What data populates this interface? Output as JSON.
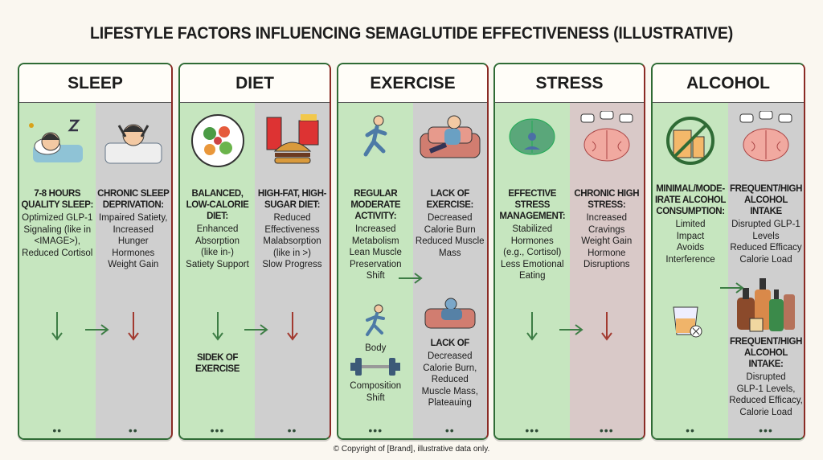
{
  "title": "LIFESTYLE FACTORS INFLUENCING SEMAGLUTIDE EFFECTIVENESS (ILLUSTRATIVE)",
  "footer": "© Copyright of [Brand], illustrative data only.",
  "colors": {
    "positive": "#c6e6bf",
    "negative": "#cfcfcf",
    "negative_stress": "#d9c9c8",
    "green_arrow": "#3d7d45",
    "red_arrow": "#a23a30"
  },
  "panels": [
    {
      "title": "SLEEP",
      "left": {
        "icon": "sleeping-person-icon",
        "heading": "7-8 HOURS QUALITY SLEEP:",
        "body": [
          "Optimized GLP-1",
          "Signaling (like in",
          "<IMAGE>),",
          "Reduced Cortisol"
        ],
        "dots": "••"
      },
      "right": {
        "icon": "sleepless-person-icon",
        "heading": "CHRONIC SLEEP DEPRIVATION:",
        "body": [
          "Impaired Satiety,",
          "Increased",
          "Hunger",
          "Hormones",
          "Weight Gain"
        ],
        "dots": "••"
      }
    },
    {
      "title": "DIET",
      "left": {
        "icon": "healthy-plate-icon",
        "heading": "BALANCED, LOW-CALORIE DIET:",
        "body": [
          "Enhanced",
          "Absorption",
          "(like in-)",
          "Satiety Support"
        ],
        "extra_heading": "SIDEK OF EXERCISE",
        "dots": "•••"
      },
      "right": {
        "icon": "fast-food-icon",
        "heading": "HIGH-FAT, HIGH-SUGAR DIET:",
        "body": [
          "Reduced",
          "Effectiveness",
          "Malabsorption",
          "(like in >)",
          "Slow Progress"
        ],
        "dots": "••"
      }
    },
    {
      "title": "EXERCISE",
      "left": {
        "icon": "runner-icon",
        "heading": "REGULAR MODERATE ACTIVITY:",
        "body": [
          "Increased",
          "Metabolism",
          "Lean Muscle",
          "Preservation",
          "Shift"
        ],
        "extra_top": "Body",
        "extra_bottom": [
          "Composition",
          "Shift"
        ],
        "dots": "•••"
      },
      "right": {
        "icon": "person-on-couch-icon",
        "heading": "LACK OF EXERCISE:",
        "body": [
          "Decreased",
          "Calorie Burn",
          "Reduced Muscle",
          "Mass"
        ],
        "extra_heading": "LACK OF",
        "extra_body": [
          "Decreased",
          "Calorie Burn,",
          "Reduced",
          "Muscle Mass,",
          "Plateauing"
        ],
        "dots": "••"
      }
    },
    {
      "title": "STRESS",
      "left": {
        "icon": "meditating-brain-icon",
        "heading": "EFFECTIVE STRESS MANAGEMENT:",
        "body": [
          "Stabilized",
          "Hormones",
          "(e.g., Cortisol)",
          "Less Emotional",
          "Eating"
        ],
        "dots": "•••"
      },
      "right": {
        "icon": "stressed-brain-icon",
        "heading": "CHRONIC HIGH STRESS:",
        "body": [
          "Increased",
          "Cravings",
          "Weight Gain",
          "Hormone",
          "Disruptions"
        ],
        "dots": "•••"
      }
    },
    {
      "title": "ALCOHOL",
      "left": {
        "icon": "no-alcohol-icon",
        "heading": "MINIMAL/MODE-IRATE ALCOHOL CONSUMPTION:",
        "body": [
          "Limited",
          "Impact",
          "Avoids",
          "Interference"
        ],
        "dots": "••"
      },
      "right": {
        "icon": "stressed-brain-icon",
        "heading": "FREQUENT/HIGH ALCOHOL INTAKE",
        "body": [
          "Disrupted GLP-1",
          "Levels",
          "Reduced Efficacy",
          "Calorie Load"
        ],
        "extra_heading": "FREQUENT/HIGH ALCOHOL INTAKE:",
        "extra_body": [
          "Disrupted",
          "GLP-1 Levels,",
          "Reduced Efficacy,",
          "Calorie Load"
        ],
        "dots": "•••"
      }
    }
  ]
}
